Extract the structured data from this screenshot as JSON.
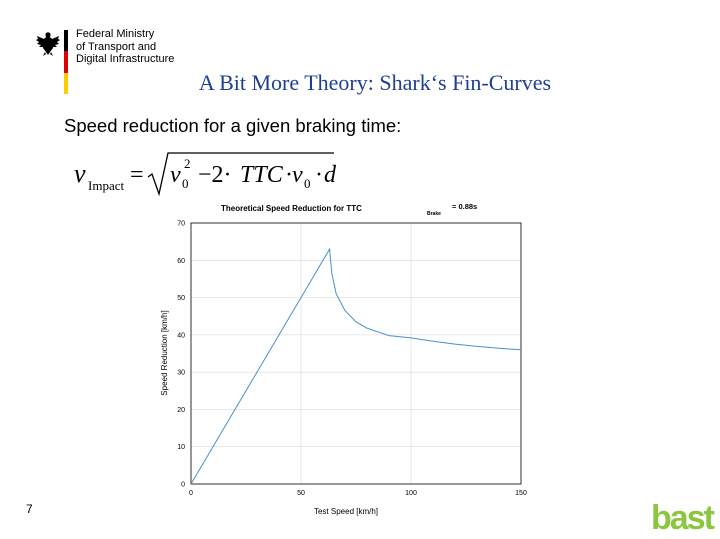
{
  "header": {
    "ministry_lines": [
      "Federal Ministry",
      "of Transport and",
      "Digital Infrastructure"
    ],
    "flag_colors": [
      "#000000",
      "#dd0000",
      "#ffcc00"
    ],
    "eagle_icon": "federal-eagle-icon"
  },
  "slide": {
    "title": "A Bit More Theory: Shark‘s Fin-Curves",
    "subtitle": "Speed reduction for a given braking time:",
    "page_number": "7",
    "title_color": "#1f3f8f"
  },
  "formula": {
    "lhs_var": "v",
    "lhs_sub": "Impact",
    "eq": "=",
    "radicand": {
      "v": "v",
      "v_sub": "0",
      "v_sup": "2",
      "minus_two": "−2·",
      "ttc": "TTC",
      "dot1": "·",
      "v2": "v",
      "v2_sub": "0",
      "dot2": "·",
      "d": "d"
    }
  },
  "chart_data": {
    "type": "line",
    "title": "Theoretical Speed Reduction for TTC",
    "title_sub": "Brake",
    "title_value": "= 0.88s",
    "xlabel": "Test Speed [km/h]",
    "ylabel": "Speed Reduction [km/h]",
    "xlim": [
      0,
      150
    ],
    "ylim": [
      0,
      70
    ],
    "xticks": [
      0,
      50,
      100,
      150
    ],
    "yticks": [
      0,
      10,
      20,
      30,
      40,
      50,
      60,
      70
    ],
    "grid": true,
    "line_color": "#4a90c8",
    "series": [
      {
        "x": [
          0,
          10,
          20,
          30,
          40,
          50,
          60,
          63,
          64,
          66,
          70,
          75,
          80,
          90,
          100,
          110,
          120,
          130,
          140,
          150
        ],
        "values": [
          0,
          10,
          20,
          30,
          40,
          50,
          60,
          63,
          56.5,
          51,
          46.5,
          43.5,
          41.8,
          39.8,
          39.2,
          38.3,
          37.5,
          36.9,
          36.4,
          36
        ]
      }
    ]
  },
  "footer": {
    "logo_text": "bast",
    "logo_color": "#8cc63f"
  }
}
